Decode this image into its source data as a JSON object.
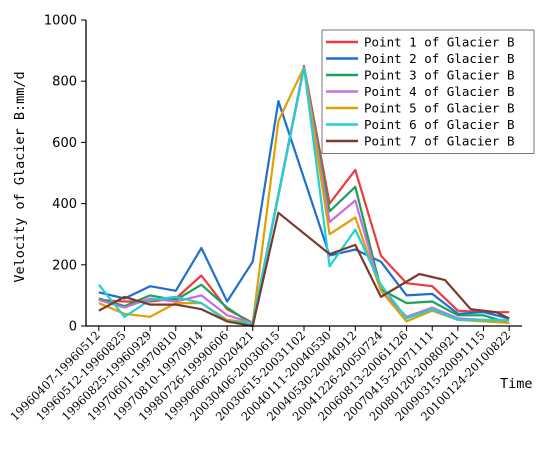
{
  "chart_data": {
    "type": "line",
    "ylabel": "Velocity of Glacier B:mm/d",
    "xlabel": "Time",
    "ylim": [
      0,
      1000
    ],
    "yticks": [
      0,
      200,
      400,
      600,
      800,
      1000
    ],
    "grid": false,
    "legend_position": "top-right",
    "categories": [
      "19960407-19960512",
      "19960512-19960825",
      "19960825-19960929",
      "19970601-19970810",
      "19970810-19970914",
      "19980726-19990606",
      "19990606-20020421",
      "20030406-20030615",
      "20030615-20031102",
      "20040111-20040530",
      "20040530-20040912",
      "20041226-20050724",
      "20060813-20061126",
      "20070415-20071111",
      "20080120-20080921",
      "20090315-20091115",
      "20100124-20100822"
    ],
    "x": [
      0,
      1,
      2,
      3,
      4,
      5,
      6,
      7,
      8,
      9,
      10,
      11,
      12,
      12.5,
      13,
      13.5,
      14,
      14.5,
      15,
      15.5,
      16
    ],
    "series": [
      {
        "name": "Point 1 of Glacier B",
        "color": "#ef3b3b",
        "values": [
          85,
          80,
          80,
          90,
          165,
          55,
          10,
          null,
          850,
          400,
          510,
          230,
          140,
          null,
          130,
          null,
          50,
          null,
          45,
          null,
          45
        ]
      },
      {
        "name": "Point 2 of Glacier B",
        "color": "#1f6fd1",
        "values": [
          110,
          90,
          130,
          115,
          255,
          80,
          210,
          735,
          null,
          230,
          250,
          210,
          100,
          null,
          105,
          null,
          40,
          null,
          45,
          null,
          25
        ]
      },
      {
        "name": "Point 3 of Glacier B",
        "color": "#1aa15a",
        "values": [
          90,
          65,
          100,
          85,
          135,
          60,
          5,
          null,
          845,
          375,
          455,
          120,
          75,
          null,
          80,
          null,
          35,
          null,
          35,
          null,
          10
        ]
      },
      {
        "name": "Point 4 of Glacier B",
        "color": "#c86ce0",
        "values": [
          85,
          60,
          90,
          80,
          100,
          35,
          10,
          null,
          845,
          340,
          410,
          115,
          30,
          null,
          60,
          null,
          25,
          null,
          20,
          null,
          10
        ]
      },
      {
        "name": "Point 5 of Glacier B",
        "color": "#e0a100",
        "values": [
          75,
          40,
          30,
          75,
          75,
          20,
          10,
          670,
          845,
          300,
          355,
          115,
          15,
          null,
          50,
          null,
          20,
          null,
          15,
          null,
          10
        ]
      },
      {
        "name": "Point 6 of Glacier B",
        "color": "#1fd0d8",
        "values": [
          135,
          30,
          85,
          95,
          75,
          15,
          10,
          null,
          845,
          195,
          315,
          135,
          25,
          null,
          55,
          null,
          20,
          null,
          20,
          null,
          20
        ]
      },
      {
        "name": "Point 7 of Glacier B",
        "color": "#7a3b2e",
        "values": [
          50,
          95,
          70,
          70,
          55,
          15,
          0,
          370,
          null,
          235,
          265,
          95,
          null,
          170,
          null,
          150,
          null,
          55,
          null,
          45,
          25
        ]
      }
    ]
  }
}
